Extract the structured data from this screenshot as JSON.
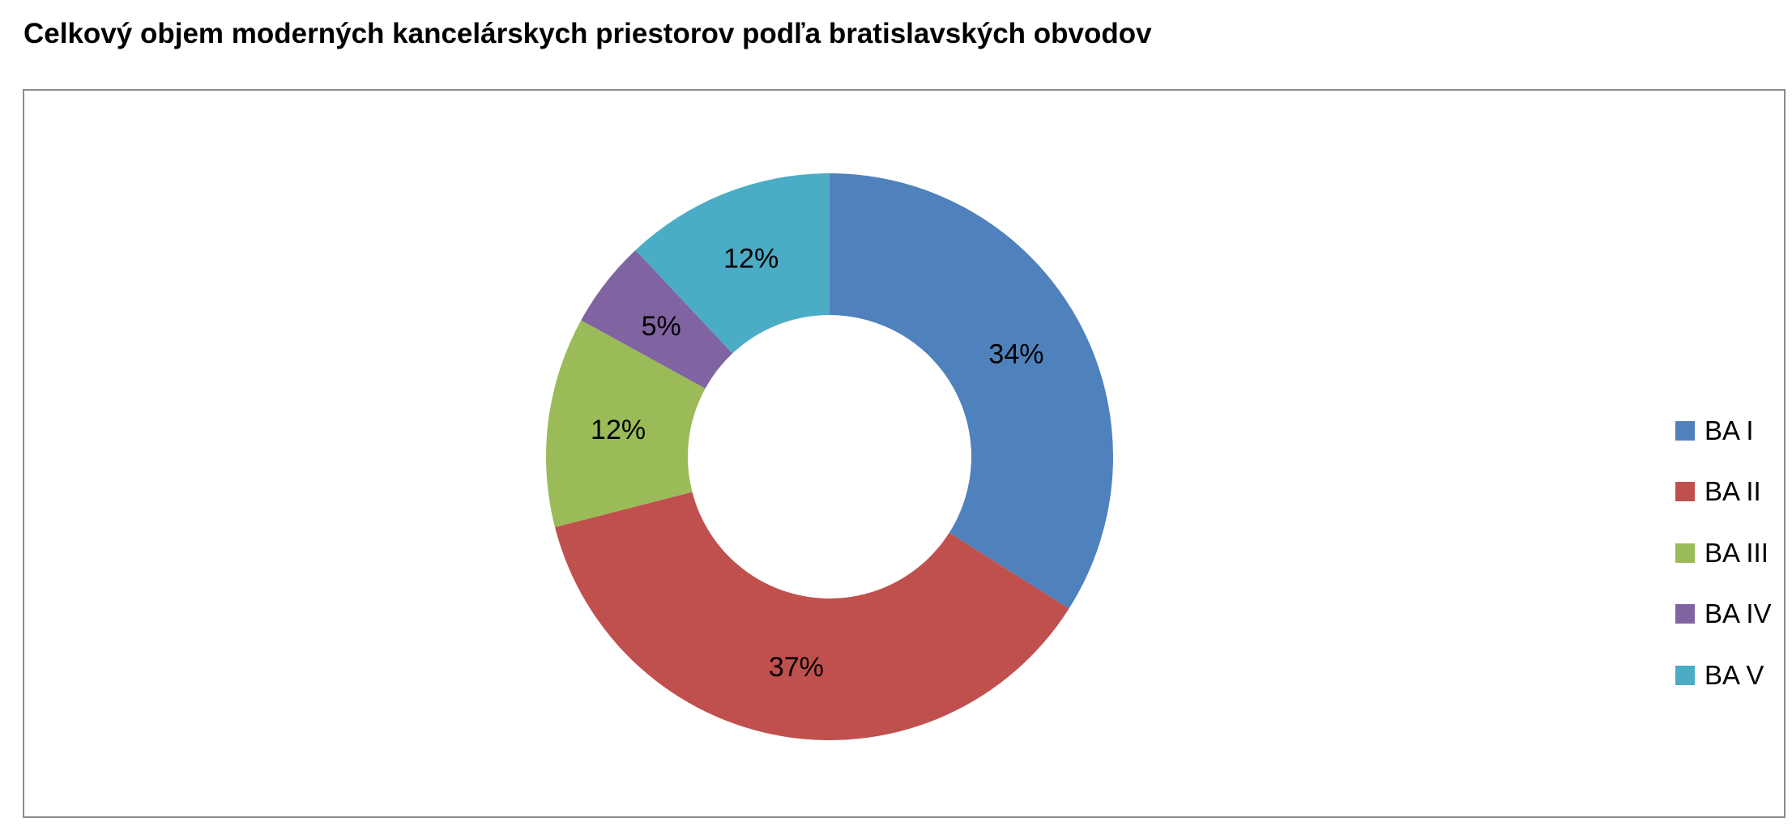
{
  "chart_data": {
    "type": "pie",
    "variant": "donut",
    "title": "Celkový objem moderných kancelárskych priestorov podľa bratislavských obvodov",
    "categories": [
      "BA I",
      "BA II",
      "BA III",
      "BA IV",
      "BA V"
    ],
    "values": [
      34,
      37,
      12,
      5,
      12
    ],
    "data_labels": [
      "34%",
      "37%",
      "12%",
      "5%",
      "12%"
    ],
    "colors": [
      "#4F81BD",
      "#C0504D",
      "#9BBB59",
      "#8064A2",
      "#4BACC6"
    ],
    "legend_position": "right",
    "start_angle_deg": 0,
    "direction": "clockwise"
  }
}
